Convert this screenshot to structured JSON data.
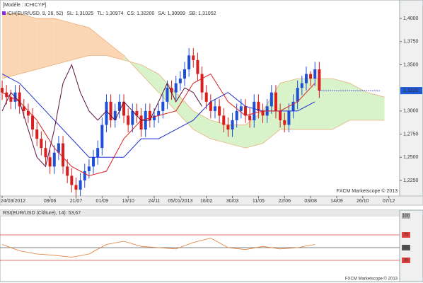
{
  "chart_data": [
    {
      "type": "candlestick",
      "title": "[Modèle : ICHICYP]",
      "indicator_labels": [
        {
          "text": "ICH(EUR/USD, 9, 26, 52)",
          "color": "#8a2be2"
        },
        {
          "text": "SL: 1,31025",
          "color": "#d02020"
        },
        {
          "text": "TL: 1,30974",
          "color": "#1e3cc8"
        },
        {
          "text": "CS: 1,32200",
          "color": "#6a1a6a"
        },
        {
          "text": "SA: 1,30999",
          "color": "#e08a30"
        },
        {
          "text": "SB: 1,31052",
          "color": "#3a8ad0"
        }
      ],
      "open": [
        1.325,
        1.32,
        1.315,
        1.31,
        1.32,
        1.305,
        1.3,
        1.295,
        1.28,
        1.27,
        1.26,
        1.25,
        1.24,
        1.255,
        1.265,
        1.24,
        1.23,
        1.22,
        1.215,
        1.225,
        1.235,
        1.24,
        1.25,
        1.26,
        1.285,
        1.31,
        1.29,
        1.3,
        1.31,
        1.295,
        1.285,
        1.3,
        1.295,
        1.28,
        1.3,
        1.29,
        1.295,
        1.3,
        1.31,
        1.325,
        1.32,
        1.33,
        1.335,
        1.345,
        1.36,
        1.355,
        1.34,
        1.32,
        1.31,
        1.3,
        1.305,
        1.295,
        1.285,
        1.28,
        1.29,
        1.3,
        1.305,
        1.295,
        1.29,
        1.31,
        1.3,
        1.295,
        1.305,
        1.32,
        1.3,
        1.29,
        1.285,
        1.3,
        1.31,
        1.325,
        1.33,
        1.34,
        1.335,
        1.345
      ],
      "high": [
        1.333,
        1.328,
        1.323,
        1.328,
        1.328,
        1.313,
        1.308,
        1.303,
        1.288,
        1.278,
        1.268,
        1.258,
        1.263,
        1.273,
        1.273,
        1.248,
        1.238,
        1.228,
        1.233,
        1.243,
        1.248,
        1.258,
        1.268,
        1.293,
        1.318,
        1.318,
        1.308,
        1.318,
        1.318,
        1.303,
        1.308,
        1.308,
        1.303,
        1.308,
        1.308,
        1.303,
        1.308,
        1.318,
        1.333,
        1.333,
        1.338,
        1.343,
        1.353,
        1.368,
        1.368,
        1.363,
        1.348,
        1.328,
        1.318,
        1.313,
        1.313,
        1.303,
        1.293,
        1.298,
        1.308,
        1.313,
        1.313,
        1.303,
        1.318,
        1.318,
        1.308,
        1.313,
        1.328,
        1.328,
        1.308,
        1.298,
        1.308,
        1.318,
        1.333,
        1.338,
        1.348,
        1.343,
        1.353,
        1.353
      ],
      "low": [
        1.312,
        1.307,
        1.302,
        1.302,
        1.297,
        1.292,
        1.287,
        1.272,
        1.262,
        1.252,
        1.242,
        1.232,
        1.232,
        1.247,
        1.232,
        1.222,
        1.212,
        1.207,
        1.207,
        1.217,
        1.227,
        1.232,
        1.242,
        1.252,
        1.277,
        1.282,
        1.282,
        1.292,
        1.287,
        1.277,
        1.277,
        1.287,
        1.272,
        1.272,
        1.282,
        1.282,
        1.287,
        1.292,
        1.302,
        1.312,
        1.312,
        1.322,
        1.327,
        1.337,
        1.347,
        1.332,
        1.312,
        1.302,
        1.292,
        1.292,
        1.287,
        1.277,
        1.272,
        1.272,
        1.282,
        1.292,
        1.287,
        1.282,
        1.282,
        1.292,
        1.287,
        1.287,
        1.297,
        1.292,
        1.282,
        1.277,
        1.277,
        1.292,
        1.302,
        1.317,
        1.322,
        1.327,
        1.327,
        1.314
      ],
      "close": [
        1.32,
        1.315,
        1.31,
        1.32,
        1.305,
        1.3,
        1.295,
        1.28,
        1.27,
        1.26,
        1.25,
        1.24,
        1.255,
        1.265,
        1.24,
        1.23,
        1.22,
        1.215,
        1.225,
        1.235,
        1.24,
        1.25,
        1.26,
        1.285,
        1.31,
        1.29,
        1.3,
        1.31,
        1.295,
        1.285,
        1.3,
        1.295,
        1.28,
        1.3,
        1.29,
        1.295,
        1.3,
        1.31,
        1.325,
        1.32,
        1.33,
        1.335,
        1.345,
        1.36,
        1.355,
        1.34,
        1.32,
        1.31,
        1.3,
        1.305,
        1.295,
        1.285,
        1.28,
        1.29,
        1.3,
        1.305,
        1.295,
        1.29,
        1.31,
        1.3,
        1.295,
        1.305,
        1.32,
        1.3,
        1.29,
        1.285,
        1.3,
        1.31,
        1.325,
        1.33,
        1.34,
        1.335,
        1.345,
        1.322
      ],
      "up_color": "#1f4fd6",
      "down_color": "#d81e1e",
      "cloud": {
        "x": [
          0,
          4,
          8,
          12,
          16,
          20,
          24,
          28,
          32,
          36,
          40,
          44,
          48,
          52,
          56,
          60,
          64,
          68,
          72,
          76,
          80,
          84,
          88
        ],
        "span_a": [
          1.335,
          1.34,
          1.345,
          1.35,
          1.355,
          1.36,
          1.36,
          1.355,
          1.35,
          1.34,
          1.32,
          1.3,
          1.29,
          1.285,
          1.285,
          1.3,
          1.33,
          1.335,
          1.335,
          1.335,
          1.33,
          1.32,
          1.315
        ],
        "span_b": [
          1.405,
          1.405,
          1.4,
          1.4,
          1.395,
          1.39,
          1.375,
          1.36,
          1.34,
          1.32,
          1.3,
          1.28,
          1.27,
          1.265,
          1.26,
          1.265,
          1.28,
          1.28,
          1.28,
          1.28,
          1.29,
          1.29,
          1.29
        ],
        "fill_up": "#d4f2c4",
        "fill_down": "#f9d2ac",
        "line_color": "#e8a870"
      },
      "lines": [
        {
          "color": "#1e2fd0",
          "x": [
            0,
            4,
            8,
            12,
            16,
            20,
            24,
            28,
            32,
            36,
            40,
            44,
            48,
            52,
            56,
            60,
            64,
            68,
            72
          ],
          "values": [
            1.34,
            1.33,
            1.31,
            1.29,
            1.27,
            1.25,
            1.25,
            1.25,
            1.27,
            1.27,
            1.28,
            1.29,
            1.31,
            1.32,
            1.305,
            1.3,
            1.3,
            1.3,
            1.31
          ]
        },
        {
          "color": "#d82020",
          "x": [
            0,
            4,
            8,
            12,
            16,
            20,
            24,
            28,
            32,
            36,
            40,
            44,
            48,
            52,
            56,
            60,
            64,
            68,
            72
          ],
          "values": [
            1.32,
            1.31,
            1.29,
            1.26,
            1.24,
            1.23,
            1.235,
            1.27,
            1.29,
            1.295,
            1.3,
            1.33,
            1.34,
            1.31,
            1.295,
            1.3,
            1.3,
            1.31,
            1.33
          ]
        },
        {
          "color": "#5a1040",
          "x": [
            0,
            2,
            4,
            6,
            8,
            10,
            12,
            14,
            16,
            18,
            20,
            22,
            24,
            26,
            28,
            30,
            32,
            34,
            36,
            38,
            40,
            42,
            44,
            46
          ],
          "values": [
            1.3,
            1.32,
            1.31,
            1.28,
            1.25,
            1.24,
            1.28,
            1.33,
            1.35,
            1.32,
            1.3,
            1.29,
            1.3,
            1.29,
            1.31,
            1.3,
            1.29,
            1.29,
            1.31,
            1.33,
            1.31,
            1.325,
            1.32,
            1.305
          ]
        }
      ],
      "last_price": {
        "value": 1.322,
        "label": "1,3220"
      },
      "watermark": "FXCM Marketscope © 2013",
      "xlim": [
        -0.5,
        91.5
      ],
      "xticks": [
        {
          "value": 0,
          "label": "24/03/2012"
        },
        {
          "value": 11,
          "label": "09/06"
        },
        {
          "value": 17,
          "label": "21/07"
        },
        {
          "value": 23,
          "label": "01/09"
        },
        {
          "value": 29,
          "label": "13/10"
        },
        {
          "value": 35,
          "label": "24/11"
        },
        {
          "value": 41,
          "label": "05/01/2013"
        },
        {
          "value": 47,
          "label": "16/02"
        },
        {
          "value": 53,
          "label": "30/03"
        },
        {
          "value": 59,
          "label": "11/05"
        },
        {
          "value": 65,
          "label": "22/06"
        },
        {
          "value": 71,
          "label": "03/08"
        },
        {
          "value": 77,
          "label": "14/09"
        },
        {
          "value": 83,
          "label": "26/10"
        },
        {
          "value": 89,
          "label": "07/12"
        }
      ],
      "ylim": [
        1.2097,
        1.4199
      ],
      "yticks": [
        {
          "value": 1.225,
          "label": "1,2250"
        },
        {
          "value": 1.25,
          "label": "1,2500"
        },
        {
          "value": 1.275,
          "label": "1,2750"
        },
        {
          "value": 1.3,
          "label": "1,3000"
        },
        {
          "value": 1.35,
          "label": "1,3500"
        },
        {
          "value": 1.375,
          "label": "1,3750"
        },
        {
          "value": 1.4,
          "label": "1,4000"
        }
      ]
    },
    {
      "type": "line",
      "title": "RSI(EUR/USD (Clôture), 14): 53,67",
      "series": [
        {
          "color": "#e07a30",
          "x": [
            0,
            4,
            8,
            12,
            16,
            20,
            24,
            28,
            32,
            36,
            40,
            44,
            48,
            52,
            56,
            60,
            64,
            68,
            72
          ],
          "values": [
            55,
            45,
            40,
            38,
            35,
            40,
            55,
            60,
            52,
            50,
            48,
            58,
            65,
            50,
            47,
            52,
            48,
            50,
            55
          ]
        }
      ],
      "watermark": "FXCM Marketscope © 2013",
      "ylim": [
        0,
        100
      ],
      "yticks": [
        100,
        70,
        50,
        30
      ],
      "level_colors": [
        "#aaaaaa",
        "#e04040",
        "#555555",
        "#e04040"
      ]
    }
  ]
}
